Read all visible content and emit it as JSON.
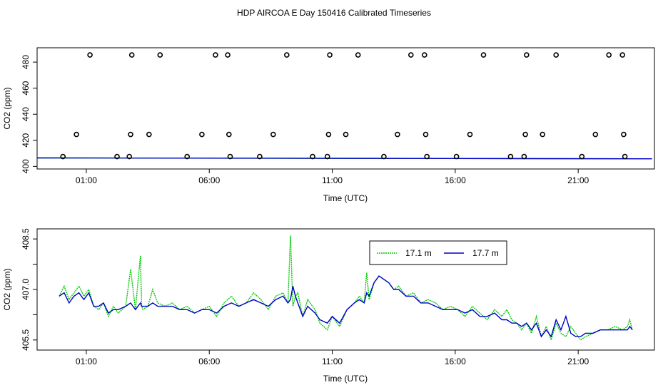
{
  "title": "HDP AIRCOA E  Day 150416  Calibrated Timeseries",
  "x_ticks": [
    "01:00",
    "06:00",
    "11:00",
    "16:00",
    "21:00"
  ],
  "chart_data": [
    {
      "type": "scatter",
      "title": "",
      "xlabel": "Time (UTC)",
      "ylabel": "CO2 (ppm)",
      "x_unit": "hours since 00:00 UTC",
      "xlim": [
        -1.0,
        24.1
      ],
      "ylim": [
        398,
        491
      ],
      "x_ticks": [
        1,
        6,
        11,
        16,
        21
      ],
      "x_tick_labels": [
        "01:00",
        "06:00",
        "11:00",
        "16:00",
        "21:00"
      ],
      "y_ticks": [
        400,
        420,
        440,
        460,
        480
      ],
      "y_tick_labels": [
        "400",
        "420",
        "440",
        "460",
        "480"
      ],
      "grid": false,
      "legend": "none",
      "points": [
        {
          "x": 0.05,
          "y": 407.5
        },
        {
          "x": 0.6,
          "y": 424.5
        },
        {
          "x": 1.15,
          "y": 485.5
        },
        {
          "x": 2.25,
          "y": 407.5
        },
        {
          "x": 2.75,
          "y": 407.5
        },
        {
          "x": 2.8,
          "y": 424.5
        },
        {
          "x": 2.85,
          "y": 485.5
        },
        {
          "x": 3.55,
          "y": 424.5
        },
        {
          "x": 4.0,
          "y": 485.5
        },
        {
          "x": 5.1,
          "y": 407.5
        },
        {
          "x": 5.7,
          "y": 424.5
        },
        {
          "x": 6.25,
          "y": 485.5
        },
        {
          "x": 6.75,
          "y": 485.5
        },
        {
          "x": 6.8,
          "y": 424.5
        },
        {
          "x": 6.85,
          "y": 407.5
        },
        {
          "x": 8.05,
          "y": 407.5
        },
        {
          "x": 8.6,
          "y": 424.5
        },
        {
          "x": 9.15,
          "y": 485.5
        },
        {
          "x": 10.2,
          "y": 407.5
        },
        {
          "x": 10.8,
          "y": 407.5
        },
        {
          "x": 10.85,
          "y": 424.5
        },
        {
          "x": 10.9,
          "y": 485.5
        },
        {
          "x": 11.55,
          "y": 424.5
        },
        {
          "x": 12.05,
          "y": 485.5
        },
        {
          "x": 13.1,
          "y": 407.5
        },
        {
          "x": 13.65,
          "y": 424.5
        },
        {
          "x": 14.2,
          "y": 485.5
        },
        {
          "x": 14.75,
          "y": 485.5
        },
        {
          "x": 14.8,
          "y": 424.5
        },
        {
          "x": 14.85,
          "y": 407.5
        },
        {
          "x": 16.05,
          "y": 407.5
        },
        {
          "x": 16.6,
          "y": 424.5
        },
        {
          "x": 17.15,
          "y": 485.5
        },
        {
          "x": 18.25,
          "y": 407.5
        },
        {
          "x": 18.8,
          "y": 407.5
        },
        {
          "x": 18.85,
          "y": 424.5
        },
        {
          "x": 18.9,
          "y": 485.5
        },
        {
          "x": 19.55,
          "y": 424.5
        },
        {
          "x": 20.1,
          "y": 485.5
        },
        {
          "x": 21.15,
          "y": 407.5
        },
        {
          "x": 21.7,
          "y": 424.5
        },
        {
          "x": 22.25,
          "y": 485.5
        },
        {
          "x": 22.8,
          "y": 485.5
        },
        {
          "x": 22.85,
          "y": 424.5
        },
        {
          "x": 22.9,
          "y": 407.5
        }
      ],
      "series": [
        {
          "color": "#00cc00",
          "x": [
            -1,
            24
          ],
          "y": [
            406.5,
            405.8
          ]
        },
        {
          "color": "#0000cc",
          "x": [
            -1,
            24
          ],
          "y": [
            406.5,
            405.8
          ]
        }
      ]
    },
    {
      "type": "line",
      "title": "",
      "xlabel": "Time (UTC)",
      "ylabel": "CO2 (ppm)",
      "x_unit": "hours since 00:00 UTC",
      "xlim": [
        -1.0,
        24.1
      ],
      "ylim": [
        405.2,
        408.8
      ],
      "x_ticks": [
        1,
        6,
        11,
        16,
        21
      ],
      "x_tick_labels": [
        "01:00",
        "06:00",
        "11:00",
        "16:00",
        "21:00"
      ],
      "y_ticks": [
        405.5,
        406.25,
        407.0,
        407.75,
        408.5
      ],
      "y_tick_labels": [
        "405.5",
        "",
        "407.0",
        "",
        "408.5"
      ],
      "grid": false,
      "legend": "top-right",
      "series": [
        {
          "name": "17.1 m",
          "color": "#00cc00",
          "x": [
            -0.1,
            0.1,
            0.3,
            0.5,
            0.7,
            0.9,
            1.1,
            1.3,
            1.5,
            1.7,
            1.9,
            2.1,
            2.3,
            2.6,
            2.8,
            3.0,
            3.2,
            3.25,
            3.3,
            3.5,
            3.7,
            3.9,
            4.2,
            4.5,
            4.8,
            5.1,
            5.4,
            5.7,
            6.0,
            6.3,
            6.6,
            6.9,
            7.2,
            7.5,
            7.8,
            8.1,
            8.4,
            8.7,
            9.0,
            9.2,
            9.3,
            9.4,
            9.5,
            9.6,
            9.8,
            10.0,
            10.3,
            10.5,
            10.8,
            11.0,
            11.3,
            11.6,
            11.9,
            12.1,
            12.3,
            12.4,
            12.5,
            12.7,
            12.9,
            13.1,
            13.3,
            13.5,
            13.7,
            14.0,
            14.3,
            14.6,
            14.9,
            15.2,
            15.5,
            15.8,
            16.1,
            16.4,
            16.7,
            17.0,
            17.3,
            17.6,
            17.9,
            18.1,
            18.3,
            18.5,
            18.7,
            18.9,
            19.1,
            19.3,
            19.5,
            19.7,
            19.9,
            20.1,
            20.3,
            20.5,
            20.7,
            20.9,
            21.1,
            21.3,
            21.6,
            21.9,
            22.2,
            22.5,
            22.8,
            23.0,
            23.1,
            23.2
          ],
          "y": [
            406.8,
            407.1,
            406.7,
            406.9,
            407.1,
            406.8,
            407.0,
            406.5,
            406.4,
            406.6,
            406.2,
            406.5,
            406.3,
            406.5,
            407.6,
            406.4,
            408.0,
            406.5,
            406.4,
            406.5,
            407.0,
            406.6,
            406.5,
            406.6,
            406.4,
            406.5,
            406.3,
            406.4,
            406.5,
            406.2,
            406.6,
            406.8,
            406.5,
            406.6,
            406.9,
            406.7,
            406.4,
            406.8,
            406.9,
            406.6,
            408.6,
            406.5,
            406.8,
            406.9,
            406.2,
            406.7,
            406.4,
            406.0,
            405.8,
            406.2,
            405.9,
            406.4,
            406.6,
            406.8,
            406.6,
            407.5,
            406.7,
            407.2,
            407.4,
            407.3,
            407.2,
            407.0,
            407.1,
            406.8,
            406.9,
            406.6,
            406.7,
            406.6,
            406.4,
            406.5,
            406.4,
            406.2,
            406.5,
            406.3,
            406.1,
            406.4,
            406.2,
            406.4,
            406.1,
            406.0,
            405.8,
            406.0,
            405.7,
            406.2,
            405.6,
            405.9,
            405.5,
            406.0,
            405.7,
            405.6,
            405.9,
            405.7,
            405.5,
            405.6,
            405.7,
            405.8,
            405.8,
            405.9,
            405.8,
            405.9,
            406.1,
            405.8
          ]
        },
        {
          "name": "17.7 m",
          "color": "#0000cc",
          "x": [
            -0.1,
            0.1,
            0.3,
            0.5,
            0.7,
            0.9,
            1.1,
            1.3,
            1.5,
            1.7,
            1.9,
            2.1,
            2.3,
            2.6,
            2.8,
            3.0,
            3.2,
            3.25,
            3.3,
            3.5,
            3.7,
            3.9,
            4.2,
            4.5,
            4.8,
            5.1,
            5.4,
            5.7,
            6.0,
            6.3,
            6.6,
            6.9,
            7.2,
            7.5,
            7.8,
            8.1,
            8.4,
            8.7,
            9.0,
            9.2,
            9.3,
            9.4,
            9.5,
            9.6,
            9.8,
            10.0,
            10.3,
            10.5,
            10.8,
            11.0,
            11.3,
            11.6,
            11.9,
            12.1,
            12.3,
            12.4,
            12.5,
            12.7,
            12.9,
            13.1,
            13.3,
            13.5,
            13.7,
            14.0,
            14.3,
            14.6,
            14.9,
            15.2,
            15.5,
            15.8,
            16.1,
            16.4,
            16.7,
            17.0,
            17.3,
            17.6,
            17.9,
            18.1,
            18.3,
            18.5,
            18.7,
            18.9,
            19.1,
            19.3,
            19.5,
            19.7,
            19.9,
            20.1,
            20.3,
            20.5,
            20.7,
            20.9,
            21.1,
            21.3,
            21.6,
            21.9,
            22.2,
            22.5,
            22.8,
            23.0,
            23.1,
            23.2
          ],
          "y": [
            406.8,
            406.9,
            406.6,
            406.8,
            406.9,
            406.7,
            406.9,
            406.5,
            406.5,
            406.6,
            406.3,
            406.4,
            406.4,
            406.5,
            406.6,
            406.4,
            406.6,
            406.5,
            406.5,
            406.5,
            406.6,
            406.5,
            406.5,
            406.5,
            406.4,
            406.4,
            406.3,
            406.4,
            406.4,
            406.3,
            406.5,
            406.6,
            406.5,
            406.6,
            406.7,
            406.6,
            406.5,
            406.7,
            406.8,
            406.6,
            406.7,
            407.1,
            406.8,
            406.6,
            406.2,
            406.5,
            406.3,
            406.1,
            406.0,
            406.2,
            406.0,
            406.4,
            406.6,
            406.7,
            406.6,
            406.9,
            406.8,
            407.2,
            407.4,
            407.3,
            407.2,
            407.0,
            407.0,
            406.8,
            406.8,
            406.6,
            406.6,
            406.5,
            406.4,
            406.4,
            406.4,
            406.3,
            406.4,
            406.2,
            406.2,
            406.3,
            406.1,
            406.1,
            406.0,
            406.0,
            405.9,
            406.0,
            405.8,
            406.0,
            405.6,
            405.8,
            405.6,
            406.1,
            405.8,
            406.2,
            405.7,
            405.6,
            405.6,
            405.7,
            405.7,
            405.8,
            405.8,
            405.8,
            405.8,
            405.8,
            405.9,
            405.8
          ]
        }
      ]
    }
  ]
}
